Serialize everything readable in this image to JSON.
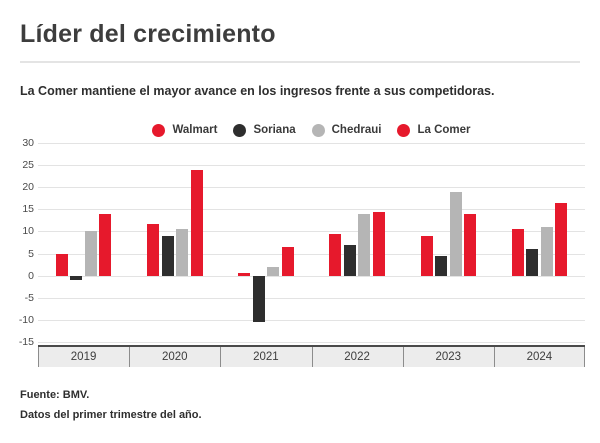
{
  "footer": {
    "source": "Fuente: BMV.",
    "note": "Datos del primer trimestre del año."
  },
  "chart_data": {
    "type": "bar",
    "title": "Líder del crecimiento",
    "subtitle": "La Comer mantiene el mayor avance en los ingresos frente a sus competidoras.",
    "categories": [
      "2019",
      "2020",
      "2021",
      "2022",
      "2023",
      "2024"
    ],
    "series": [
      {
        "name": "Walmart",
        "color": "#e6192c",
        "values": [
          5,
          11.7,
          0.5,
          9.5,
          9,
          10.5
        ]
      },
      {
        "name": "Soriana",
        "color": "#2e2e2e",
        "values": [
          -1,
          9,
          -10.5,
          7,
          4.5,
          6
        ]
      },
      {
        "name": "Chedraui",
        "color": "#b5b5b5",
        "values": [
          10,
          10.5,
          2,
          14,
          19,
          11
        ]
      },
      {
        "name": "La Comer",
        "color": "#e6192c",
        "values": [
          14,
          24,
          6.5,
          14.5,
          14,
          16.5
        ]
      }
    ],
    "ylim": [
      -15,
      30
    ],
    "yticks": [
      30,
      25,
      20,
      15,
      10,
      5,
      0,
      -5,
      -10,
      -15
    ],
    "grid": true,
    "legend_position": "top",
    "xlabel": "",
    "ylabel": ""
  }
}
